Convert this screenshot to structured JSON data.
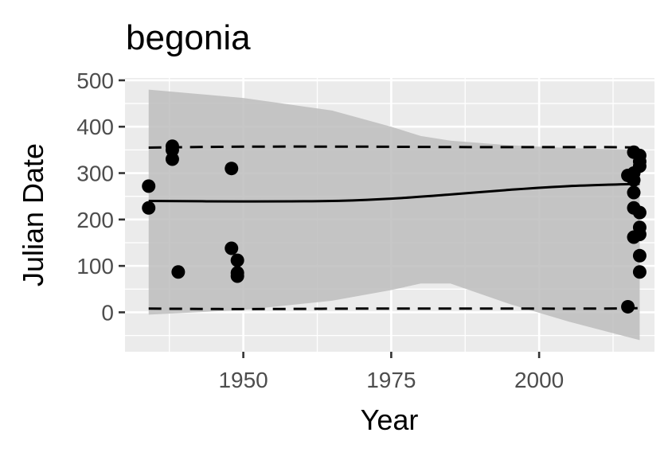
{
  "chart_data": {
    "type": "scatter",
    "title": "begonia",
    "xlabel": "Year",
    "ylabel": "Julian Date",
    "xlim": [
      1930,
      2019.5
    ],
    "ylim": [
      -85,
      505
    ],
    "x_ticks": [
      1950,
      1975,
      2000
    ],
    "x_tick_labels": [
      "1950",
      "1975",
      "2000"
    ],
    "y_ticks": [
      0,
      100,
      200,
      300,
      400,
      500
    ],
    "y_tick_labels": [
      "0",
      "100",
      "200",
      "300",
      "400",
      "500"
    ],
    "grid": true,
    "legend": "none",
    "colors": {
      "panel": "#ebebeb",
      "grid": "#ffffff",
      "points": "#000000",
      "ribbon": "#bdbdbd",
      "fit_line": "#000000",
      "bound_lines": "#000000"
    },
    "points": [
      {
        "x": 1934,
        "y": 272
      },
      {
        "x": 1934,
        "y": 225
      },
      {
        "x": 1938,
        "y": 358
      },
      {
        "x": 1938,
        "y": 350
      },
      {
        "x": 1938,
        "y": 330
      },
      {
        "x": 1939,
        "y": 87
      },
      {
        "x": 1948,
        "y": 310
      },
      {
        "x": 1948,
        "y": 138
      },
      {
        "x": 1949,
        "y": 112
      },
      {
        "x": 1949,
        "y": 85
      },
      {
        "x": 1949,
        "y": 78
      },
      {
        "x": 2015,
        "y": 295
      },
      {
        "x": 2015,
        "y": 12
      },
      {
        "x": 2016,
        "y": 345
      },
      {
        "x": 2016,
        "y": 300
      },
      {
        "x": 2016,
        "y": 285
      },
      {
        "x": 2016,
        "y": 258
      },
      {
        "x": 2016,
        "y": 225
      },
      {
        "x": 2016,
        "y": 162
      },
      {
        "x": 2017,
        "y": 338
      },
      {
        "x": 2017,
        "y": 325
      },
      {
        "x": 2017,
        "y": 315
      },
      {
        "x": 2017,
        "y": 215
      },
      {
        "x": 2017,
        "y": 183
      },
      {
        "x": 2017,
        "y": 168
      },
      {
        "x": 2017,
        "y": 122
      },
      {
        "x": 2017,
        "y": 87
      }
    ],
    "fit_line": {
      "x": [
        1934,
        1950,
        1965,
        1975,
        1985,
        1995,
        2005,
        2017
      ],
      "y": [
        240,
        239,
        240,
        245,
        254,
        264,
        272,
        277
      ]
    },
    "ribbon": {
      "x": [
        1934,
        1950,
        1965,
        1975,
        1980,
        1985,
        1995,
        2005,
        2017
      ],
      "upper": [
        480,
        462,
        435,
        400,
        380,
        370,
        360,
        354,
        350
      ],
      "lower": [
        -5,
        5,
        25,
        48,
        62,
        62,
        18,
        -20,
        -60
      ]
    },
    "upper_bound": {
      "x": [
        1934,
        1950,
        1970,
        1990,
        2010,
        2017
      ],
      "y": [
        355,
        357,
        357,
        356,
        356,
        355
      ]
    },
    "lower_bound": {
      "x": [
        1934,
        1950,
        1970,
        1990,
        2010,
        2017
      ],
      "y": [
        8,
        7,
        8,
        8,
        8,
        9
      ]
    }
  }
}
